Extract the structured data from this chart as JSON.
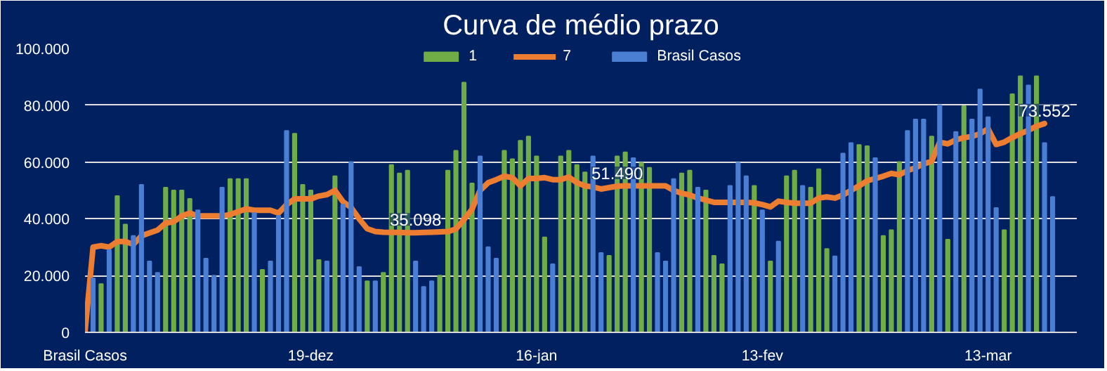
{
  "chart_data": {
    "type": "bar",
    "title": "Curva de médio prazo",
    "categories": [
      "Brasil Casos",
      null,
      null,
      null,
      null,
      null,
      null,
      null,
      null,
      null,
      null,
      null,
      null,
      null,
      null,
      null,
      null,
      null,
      null,
      null,
      null,
      null,
      null,
      null,
      null,
      null,
      null,
      null,
      "19-dez",
      null,
      null,
      null,
      null,
      null,
      null,
      null,
      null,
      null,
      null,
      null,
      null,
      null,
      null,
      null,
      null,
      null,
      null,
      null,
      null,
      null,
      null,
      null,
      null,
      null,
      null,
      null,
      "16-jan",
      null,
      null,
      null,
      null,
      null,
      null,
      null,
      null,
      null,
      null,
      null,
      null,
      null,
      null,
      null,
      null,
      null,
      null,
      null,
      null,
      null,
      null,
      null,
      null,
      null,
      null,
      null,
      "13-fev",
      null,
      null,
      null,
      null,
      null,
      null,
      null,
      null,
      null,
      null,
      null,
      null,
      null,
      null,
      null,
      null,
      null,
      null,
      null,
      null,
      null,
      null,
      null,
      null,
      null,
      null,
      null,
      "13-mar",
      null,
      null,
      null,
      null,
      null,
      null,
      null,
      null
    ],
    "ylim": [
      0,
      100000
    ],
    "yticks": [
      {
        "value": 0,
        "label": "0"
      },
      {
        "value": 20000,
        "label": "20.000"
      },
      {
        "value": 40000,
        "label": "40.000"
      },
      {
        "value": 60000,
        "label": "60.000"
      },
      {
        "value": 80000,
        "label": "80.000"
      },
      {
        "value": 100000,
        "label": "100.000"
      }
    ],
    "grid": "y",
    "legend": "top",
    "series": [
      {
        "name": "1",
        "color": "#70ad47",
        "values": [
          null,
          null,
          17000,
          null,
          48000,
          38000,
          null,
          null,
          null,
          null,
          51000,
          50000,
          50000,
          47000,
          null,
          null,
          null,
          null,
          54000,
          54000,
          54000,
          null,
          22000,
          null,
          null,
          null,
          70000,
          52000,
          50000,
          25500,
          null,
          55000,
          null,
          null,
          null,
          18000,
          null,
          21000,
          59000,
          56000,
          57000,
          null,
          null,
          null,
          20000,
          57000,
          64000,
          88000,
          52500,
          null,
          null,
          null,
          64000,
          61000,
          67500,
          69000,
          62000,
          33500,
          null,
          62000,
          64000,
          59000,
          56400,
          null,
          null,
          27000,
          62000,
          63400,
          null,
          59700,
          58000,
          null,
          null,
          null,
          56000,
          57000,
          null,
          50000,
          27000,
          24000,
          null,
          null,
          null,
          51600,
          null,
          25000,
          null,
          55000,
          57000,
          null,
          51000,
          57500,
          29400,
          null,
          null,
          null,
          66000,
          65600,
          null,
          34000,
          36000,
          60000,
          null,
          null,
          null,
          69000,
          null,
          32700,
          null,
          79700,
          null,
          null,
          null,
          null,
          36000,
          83900,
          90200,
          null,
          90200,
          null,
          null
        ]
      },
      {
        "name": "7",
        "type": "line",
        "color": "#ed7d31",
        "values": [
          0,
          30000,
          30500,
          30000,
          32000,
          32000,
          31000,
          34000,
          35000,
          36000,
          38500,
          39000,
          41000,
          42000,
          41000,
          41000,
          41000,
          41000,
          41500,
          42500,
          43500,
          43000,
          43000,
          43000,
          42000,
          45000,
          47000,
          47000,
          47000,
          48000,
          48500,
          50000,
          46000,
          44000,
          40000,
          36500,
          35500,
          35300,
          35200,
          35200,
          35100,
          35098,
          35200,
          35300,
          35400,
          35500,
          36400,
          39700,
          43400,
          50000,
          52700,
          53800,
          55000,
          54500,
          51600,
          54200,
          54200,
          54500,
          53800,
          53800,
          54700,
          52700,
          51600,
          51200,
          50500,
          51000,
          51490,
          51600,
          51600,
          51600,
          51600,
          51600,
          51600,
          50000,
          49000,
          48400,
          47300,
          46600,
          45800,
          45800,
          45800,
          45800,
          45800,
          45600,
          45000,
          44200,
          46200,
          45800,
          45500,
          45500,
          45500,
          47300,
          47700,
          47300,
          48400,
          50000,
          51600,
          53400,
          54200,
          55000,
          56000,
          55500,
          57000,
          58000,
          59300,
          60300,
          67000,
          66400,
          67800,
          68600,
          69000,
          70000,
          71700,
          66200,
          67000,
          68600,
          70000,
          71200,
          72600,
          73552,
          null
        ],
        "value_labels": [
          null,
          null,
          null,
          null,
          null,
          null,
          null,
          null,
          null,
          null,
          null,
          null,
          null,
          null,
          null,
          null,
          null,
          null,
          null,
          null,
          null,
          null,
          null,
          null,
          null,
          null,
          null,
          null,
          null,
          null,
          null,
          null,
          null,
          null,
          null,
          null,
          null,
          null,
          null,
          null,
          null,
          "35.098",
          null,
          null,
          null,
          null,
          null,
          null,
          null,
          null,
          null,
          null,
          null,
          null,
          null,
          null,
          null,
          null,
          null,
          null,
          null,
          null,
          null,
          null,
          null,
          null,
          "51.490",
          null,
          null,
          null,
          null,
          null,
          null,
          null,
          null,
          null,
          null,
          null,
          null,
          null,
          null,
          null,
          null,
          null,
          null,
          null,
          null,
          null,
          null,
          null,
          null,
          null,
          null,
          null,
          null,
          null,
          null,
          null,
          null,
          null,
          null,
          null,
          null,
          null,
          null,
          null,
          null,
          null,
          null,
          null,
          null,
          null,
          null,
          null,
          null,
          null,
          null,
          null,
          null,
          "73.552",
          null
        ]
      },
      {
        "name": "Brasil Casos",
        "color": "#4a7fd4",
        "values": [
          null,
          19000,
          null,
          29000,
          null,
          null,
          34000,
          52000,
          25000,
          21000,
          null,
          null,
          null,
          null,
          43000,
          26000,
          20000,
          51000,
          null,
          null,
          null,
          42000,
          null,
          25000,
          41000,
          71000,
          null,
          null,
          null,
          null,
          25000,
          null,
          45000,
          60000,
          23000,
          null,
          18000,
          null,
          null,
          null,
          null,
          25000,
          16000,
          18000,
          null,
          null,
          null,
          null,
          null,
          62000,
          30000,
          26000,
          null,
          null,
          null,
          null,
          null,
          null,
          24000,
          null,
          null,
          null,
          null,
          62000,
          28000,
          null,
          null,
          null,
          61400,
          null,
          null,
          28000,
          25000,
          54000,
          null,
          null,
          51000,
          null,
          null,
          null,
          51600,
          59700,
          55000,
          null,
          43000,
          null,
          32000,
          null,
          null,
          51600,
          null,
          null,
          null,
          26800,
          63000,
          66700,
          null,
          null,
          61400,
          null,
          null,
          null,
          71000,
          75000,
          75000,
          null,
          80000,
          null,
          70600,
          null,
          75000,
          85600,
          75800,
          43800,
          null,
          null,
          null,
          87000,
          null,
          66700,
          47700
        ]
      }
    ]
  }
}
